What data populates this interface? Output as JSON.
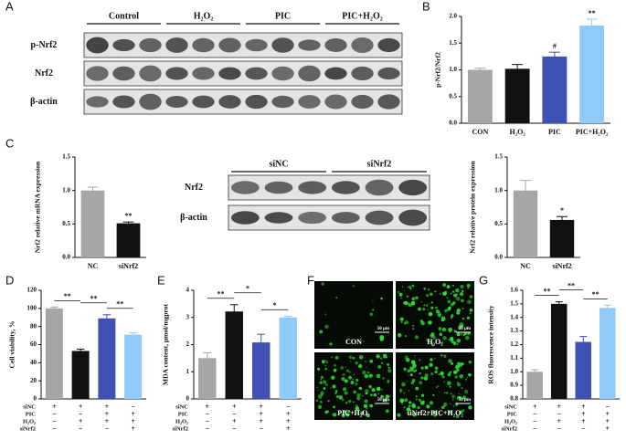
{
  "panel_labels": [
    "A",
    "B",
    "C",
    "D",
    "E",
    "F",
    "G"
  ],
  "blots": {
    "A": {
      "columns": [
        "Control",
        "H₂O₂",
        "PIC",
        "PIC+H₂O₂"
      ],
      "rows": [
        "p-Nrf2",
        "Nrf2",
        "β-actin"
      ]
    },
    "C": {
      "columns": [
        "siNC",
        "siNrf2"
      ],
      "rows": [
        "Nrf2",
        "β-actin"
      ]
    }
  },
  "images": {
    "labels": [
      "CON",
      "H₂O₂",
      "PIC+H₂O₂",
      "siNrf2+PIC+H₂O₂"
    ],
    "scale_bar": "50 μm"
  },
  "chart_data": [
    {
      "type": "bar",
      "ylabel": "p-Nrf2/Nrf2",
      "categories": [
        "CON",
        "H₂O₂",
        "PIC",
        "PIC+H₂O₂"
      ],
      "values": [
        1.0,
        1.02,
        1.25,
        1.83
      ],
      "errors": [
        0.03,
        0.08,
        0.08,
        0.12
      ],
      "colors": [
        "#a6a6a6",
        "#111111",
        "#3f51b5",
        "#90caf9"
      ],
      "ylim": [
        0,
        2.0
      ],
      "yticks": [
        {
          "value": 0,
          "label": "0.0"
        },
        0.5,
        {
          "value": 1,
          "label": "1.0"
        },
        1.5,
        {
          "value": 2,
          "label": "2.0"
        }
      ],
      "annotations": [
        null,
        null,
        "#",
        "**"
      ]
    },
    {
      "type": "bar",
      "ylabel": "Nrf2 relative mRNA expression",
      "categories": [
        "NC",
        "siNrf2"
      ],
      "values": [
        1.0,
        0.51
      ],
      "errors": [
        0.05,
        0.02
      ],
      "colors": [
        "#a6a6a6",
        "#111111"
      ],
      "ylim": [
        0,
        1.5
      ],
      "yticks": [
        {
          "value": 0,
          "label": "0.0"
        },
        0.5,
        {
          "value": 1,
          "label": "1.0"
        },
        1.5
      ],
      "annotations": [
        null,
        "**"
      ]
    },
    {
      "type": "bar",
      "ylabel": "Nrf2 relative protein expression",
      "categories": [
        "NC",
        "siNrf2"
      ],
      "values": [
        1.0,
        0.56
      ],
      "errors": [
        0.15,
        0.05
      ],
      "colors": [
        "#a6a6a6",
        "#111111"
      ],
      "ylim": [
        0,
        1.5
      ],
      "yticks": [
        {
          "value": 0,
          "label": "0.0"
        },
        0.5,
        {
          "value": 1,
          "label": "1.0"
        },
        1.5
      ],
      "annotations": [
        null,
        "*"
      ]
    },
    {
      "type": "bar",
      "ylabel": "Cell viability, %",
      "values": [
        100,
        53,
        89,
        71
      ],
      "errors": [
        1.5,
        2,
        4,
        2
      ],
      "colors": [
        "#a6a6a6",
        "#111111",
        "#3f51b5",
        "#90caf9"
      ],
      "ylim": [
        0,
        120
      ],
      "yticks": [
        0,
        20,
        40,
        60,
        80,
        100,
        120
      ],
      "comparisons": [
        {
          "groups": [
            0,
            1
          ],
          "label": "**"
        },
        {
          "groups": [
            1,
            2
          ],
          "label": "**"
        },
        {
          "groups": [
            2,
            3
          ],
          "label": "**"
        }
      ],
      "treatment_labels": [
        "siNC",
        "PIC",
        "H₂O₂",
        "siNrf2"
      ],
      "treatment_signs": [
        [
          "+",
          "+",
          "+",
          "−"
        ],
        [
          "−",
          "−",
          "+",
          "+"
        ],
        [
          "−",
          "+",
          "+",
          "+"
        ],
        [
          "−",
          "−",
          "−",
          "+"
        ]
      ]
    },
    {
      "type": "bar",
      "ylabel": "MDA content, μmol/mgprot",
      "values": [
        1.5,
        3.22,
        2.08,
        3.0
      ],
      "errors": [
        0.2,
        0.25,
        0.3,
        0.05
      ],
      "colors": [
        "#a6a6a6",
        "#111111",
        "#3f51b5",
        "#90caf9"
      ],
      "ylim": [
        0,
        4
      ],
      "yticks": [
        0,
        1,
        2,
        3,
        4
      ],
      "comparisons": [
        {
          "groups": [
            0,
            1
          ],
          "label": "**"
        },
        {
          "groups": [
            1,
            2
          ],
          "label": "*"
        },
        {
          "groups": [
            2,
            3
          ],
          "label": "*"
        }
      ],
      "treatment_labels": [
        "siNC",
        "PIC",
        "H₂O₂",
        "siNrf2"
      ],
      "treatment_signs": [
        [
          "+",
          "+",
          "+",
          "−"
        ],
        [
          "−",
          "−",
          "+",
          "+"
        ],
        [
          "−",
          "+",
          "+",
          "+"
        ],
        [
          "−",
          "−",
          "−",
          "+"
        ]
      ]
    },
    {
      "type": "bar",
      "ylabel": "ROS fluorescence intensity",
      "values": [
        1.0,
        1.5,
        1.22,
        1.47
      ],
      "errors": [
        0.015,
        0.015,
        0.04,
        0.02
      ],
      "colors": [
        "#a6a6a6",
        "#111111",
        "#3f51b5",
        "#90caf9"
      ],
      "ylim": [
        0.8,
        1.6
      ],
      "yticks": [
        0.8,
        0.9,
        {
          "value": 1,
          "label": "1.0"
        },
        1.1,
        1.2,
        1.3,
        1.4,
        1.5,
        1.6
      ],
      "comparisons": [
        {
          "groups": [
            0,
            1
          ],
          "label": "**"
        },
        {
          "groups": [
            1,
            2
          ],
          "label": "**"
        },
        {
          "groups": [
            2,
            3
          ],
          "label": "**"
        }
      ],
      "treatment_labels": [
        "siNC",
        "PIC",
        "H₂O₂",
        "siNrf2"
      ],
      "treatment_signs": [
        [
          "+",
          "+",
          "+",
          "−"
        ],
        [
          "−",
          "−",
          "+",
          "+"
        ],
        [
          "−",
          "+",
          "+",
          "+"
        ],
        [
          "−",
          "−",
          "−",
          "+"
        ]
      ]
    }
  ]
}
